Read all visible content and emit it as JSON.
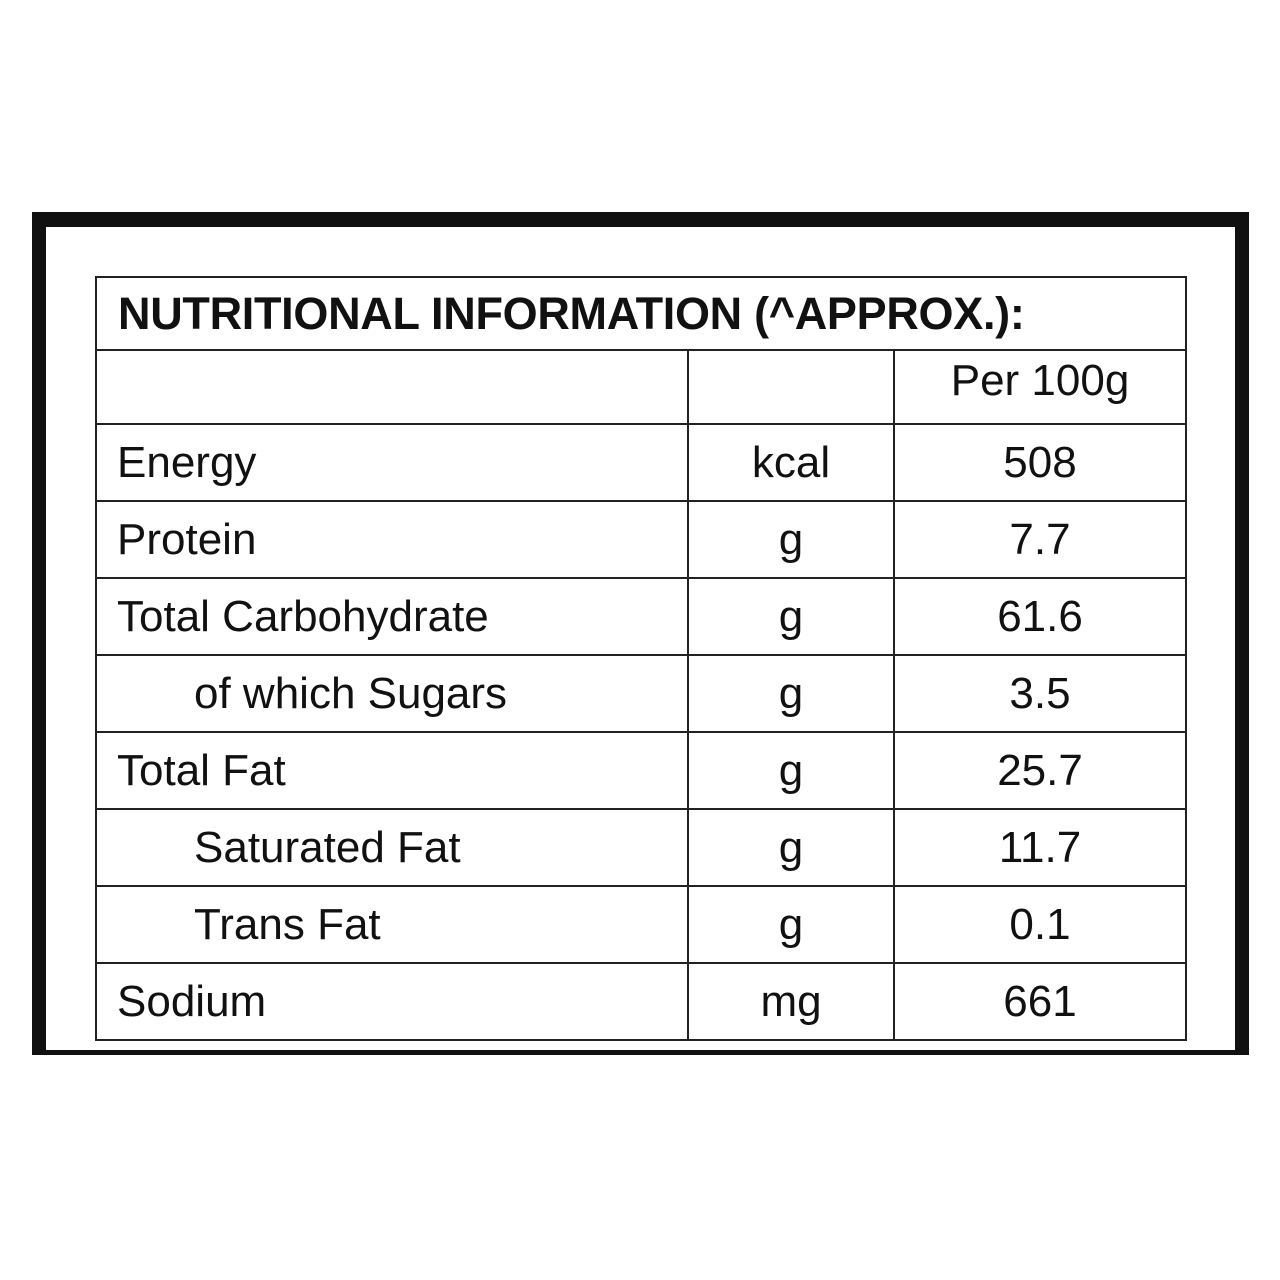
{
  "table": {
    "title": "NUTRITIONAL INFORMATION (^APPROX.):",
    "header": [
      "",
      "",
      "Per 100g"
    ],
    "rows": [
      [
        "Energy",
        "kcal",
        "508"
      ],
      [
        "Protein",
        "g",
        "7.7"
      ],
      [
        "Total Carbohydrate",
        "g",
        "61.6"
      ],
      [
        "of which Sugars",
        "g",
        "3.5"
      ],
      [
        "Total Fat",
        "g",
        "25.7"
      ],
      [
        "Saturated Fat",
        "g",
        "11.7"
      ],
      [
        "Trans Fat",
        "g",
        "0.1"
      ],
      [
        "Sodium",
        "mg",
        "661"
      ]
    ]
  }
}
